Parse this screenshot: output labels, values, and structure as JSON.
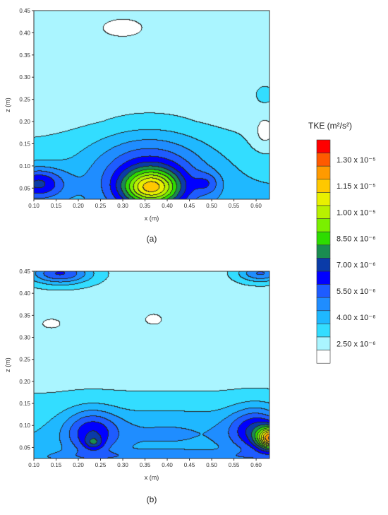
{
  "legend": {
    "title": "TKE (m²/s²)",
    "bands": [
      "#ff0000",
      "#ff5a00",
      "#ff9a00",
      "#ffc800",
      "#e8f000",
      "#b8f000",
      "#7af000",
      "#2edc00",
      "#1a8c50",
      "#0a3ba8",
      "#0000ff",
      "#1e5cff",
      "#1f8dff",
      "#1fb8ff",
      "#33ddff",
      "#aaf5ff",
      "#ffffff"
    ],
    "labels": [
      "1.30 x 10⁻⁵",
      "1.15 x 10⁻⁵",
      "1.00 x 10⁻⁵",
      "8.50 x 10⁻⁶",
      "7.00 x 10⁻⁶",
      "5.50 x 10⁻⁶",
      "4.00 x 10⁻⁶",
      "2.50 x 10⁻⁶"
    ]
  },
  "chart_data": [
    {
      "type": "heatmap",
      "panel_label": "(a)",
      "xlabel": "x (m)",
      "ylabel": "z (m)",
      "xlim": [
        0.1,
        0.63
      ],
      "ylim": [
        0.025,
        0.45
      ],
      "x_ticks": [
        "0.10",
        "0.15",
        "0.20",
        "0.25",
        "0.30",
        "0.35",
        "0.40",
        "0.45",
        "0.50",
        "0.55",
        "0.60"
      ],
      "y_ticks": [
        "0.05",
        "0.10",
        "0.15",
        "0.20",
        "0.25",
        "0.30",
        "0.35",
        "0.40",
        "0.45"
      ],
      "x_tick_values": [
        0.1,
        0.15,
        0.2,
        0.25,
        0.3,
        0.35,
        0.4,
        0.45,
        0.5,
        0.55,
        0.6
      ],
      "y_tick_values": [
        0.05,
        0.1,
        0.15,
        0.2,
        0.25,
        0.3,
        0.35,
        0.4,
        0.45
      ],
      "background_level": 1.5,
      "features": [
        {
          "x": 0.3,
          "z": 0.41,
          "sx": 0.08,
          "sz": 0.035,
          "a": -0.7
        },
        {
          "x": 0.56,
          "z": 0.36,
          "sx": 0.06,
          "sz": 0.04,
          "a": -0.5
        },
        {
          "x": 0.36,
          "z": 0.09,
          "sx": 0.13,
          "sz": 0.085,
          "a": 3.8
        },
        {
          "x": 0.365,
          "z": 0.05,
          "sx": 0.065,
          "sz": 0.04,
          "a": 7.5
        },
        {
          "x": 0.11,
          "z": 0.06,
          "sx": 0.06,
          "sz": 0.035,
          "a": 4.2
        },
        {
          "x": 0.49,
          "z": 0.06,
          "sx": 0.03,
          "sz": 0.025,
          "a": 1.8
        },
        {
          "x": 0.62,
          "z": 0.17,
          "sx": 0.03,
          "sz": 0.04,
          "a": -1.2
        },
        {
          "x": 0.62,
          "z": 0.26,
          "sx": 0.02,
          "sz": 0.02,
          "a": 1.0
        }
      ]
    },
    {
      "type": "heatmap",
      "panel_label": "(b)",
      "xlabel": "x (m)",
      "ylabel": "z (m)",
      "xlim": [
        0.1,
        0.63
      ],
      "ylim": [
        0.025,
        0.45
      ],
      "x_ticks": [
        "0.10",
        "0.15",
        "0.20",
        "0.25",
        "0.30",
        "0.35",
        "0.40",
        "0.45",
        "0.50",
        "0.55",
        "0.60"
      ],
      "y_ticks": [
        "0.05",
        "0.10",
        "0.15",
        "0.20",
        "0.25",
        "0.30",
        "0.35",
        "0.40",
        "0.45"
      ],
      "x_tick_values": [
        0.1,
        0.15,
        0.2,
        0.25,
        0.3,
        0.35,
        0.4,
        0.45,
        0.5,
        0.55,
        0.6
      ],
      "y_tick_values": [
        0.05,
        0.1,
        0.15,
        0.2,
        0.25,
        0.3,
        0.35,
        0.4,
        0.45
      ],
      "background_level": 1.6,
      "features": [
        {
          "x": 0.16,
          "z": 0.445,
          "sx": 0.07,
          "sz": 0.025,
          "a": 4.5
        },
        {
          "x": 0.61,
          "z": 0.445,
          "sx": 0.05,
          "sz": 0.02,
          "a": 3.5
        },
        {
          "x": 0.14,
          "z": 0.33,
          "sx": 0.08,
          "sz": 0.04,
          "a": -0.7
        },
        {
          "x": 0.37,
          "z": 0.34,
          "sx": 0.04,
          "sz": 0.025,
          "a": -0.8
        },
        {
          "x": 0.23,
          "z": 0.085,
          "sx": 0.06,
          "sz": 0.05,
          "a": 3.5
        },
        {
          "x": 0.235,
          "z": 0.06,
          "sx": 0.02,
          "sz": 0.015,
          "a": 2.0
        },
        {
          "x": 0.6,
          "z": 0.09,
          "sx": 0.06,
          "sz": 0.05,
          "a": 4.0
        },
        {
          "x": 0.635,
          "z": 0.07,
          "sx": 0.03,
          "sz": 0.025,
          "a": 9.5
        },
        {
          "x": 0.4,
          "z": 0.09,
          "sx": 0.2,
          "sz": 0.05,
          "a": 1.3
        },
        {
          "x": 0.4,
          "z": 0.03,
          "sx": 0.3,
          "sz": 0.012,
          "a": 1.2
        }
      ]
    }
  ]
}
